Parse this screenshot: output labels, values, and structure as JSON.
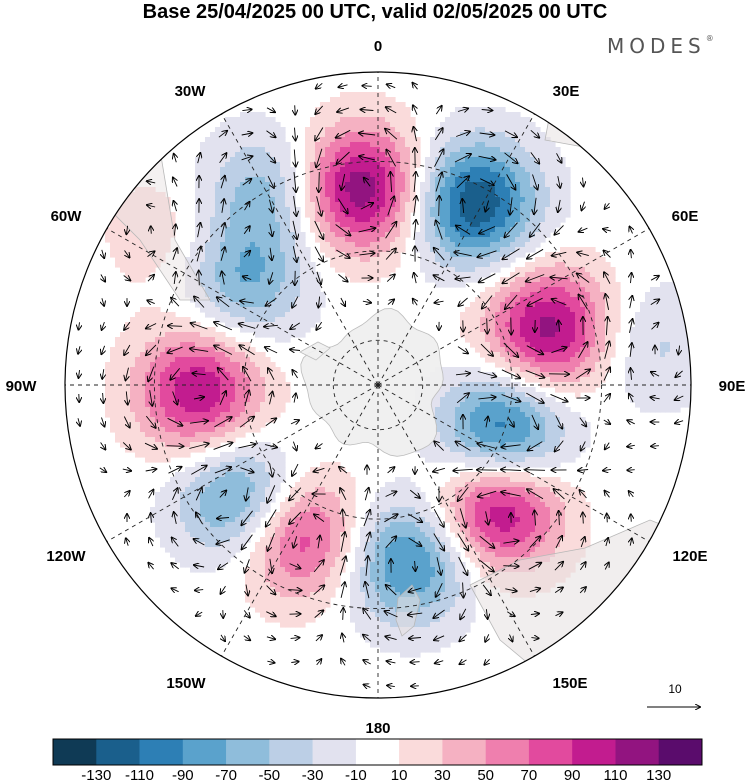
{
  "title": "Base 25/04/2025 00 UTC, valid 02/05/2025 00 UTC",
  "brand": {
    "name": "MODES",
    "mark": "®"
  },
  "longitude_labels": [
    {
      "key": "0",
      "text": "0"
    },
    {
      "key": "30E",
      "text": "30E"
    },
    {
      "key": "60E",
      "text": "60E"
    },
    {
      "key": "90E",
      "text": "90E"
    },
    {
      "key": "120E",
      "text": "120E"
    },
    {
      "key": "150E",
      "text": "150E"
    },
    {
      "key": "180",
      "text": "180"
    },
    {
      "key": "150W",
      "text": "150W"
    },
    {
      "key": "120W",
      "text": "120W"
    },
    {
      "key": "90W",
      "text": "90W"
    },
    {
      "key": "60W",
      "text": "60W"
    },
    {
      "key": "30W",
      "text": "30W"
    }
  ],
  "reference_vector": {
    "label": "10"
  },
  "colorbar": {
    "colors": [
      "#0f3a55",
      "#1a5f8c",
      "#2d7fb5",
      "#5aa2cc",
      "#8fbddb",
      "#bccfe6",
      "#e2e2ef",
      "#ffffff",
      "#fadbdb",
      "#f5b1c2",
      "#ef7fae",
      "#e24a9e",
      "#c21c8f",
      "#921480",
      "#5a0c6c"
    ],
    "ticks": [
      "-130",
      "-110",
      "-90",
      "-70",
      "-50",
      "-30",
      "-10",
      "10",
      "30",
      "50",
      "70",
      "90",
      "110",
      "130"
    ]
  },
  "field": {
    "centers": [
      {
        "name": "positive",
        "lon": -5,
        "lat": -46,
        "val": 130
      },
      {
        "name": "negative",
        "lon": 28,
        "lat": -44,
        "val": -130
      },
      {
        "name": "positive",
        "lon": 72,
        "lat": -50,
        "val": 120
      },
      {
        "name": "negative",
        "lon": 112,
        "lat": -60,
        "val": -125
      },
      {
        "name": "positive",
        "lon": 135,
        "lat": -52,
        "val": 130
      },
      {
        "name": "negative",
        "lon": 170,
        "lat": -50,
        "val": -100
      },
      {
        "name": "positive",
        "lon": -152,
        "lat": -52,
        "val": 100
      },
      {
        "name": "negative",
        "lon": -130,
        "lat": -50,
        "val": -95
      },
      {
        "name": "positive",
        "lon": -92,
        "lat": -50,
        "val": 110
      },
      {
        "name": "negative",
        "lon": -52,
        "lat": -52,
        "val": -70
      },
      {
        "name": "negative",
        "lon": -30,
        "lat": -40,
        "val": -60
      },
      {
        "name": "positive",
        "lon": -55,
        "lat": -32,
        "val": 25
      },
      {
        "name": "negative",
        "lon": 82,
        "lat": -28,
        "val": -35
      }
    ]
  }
}
